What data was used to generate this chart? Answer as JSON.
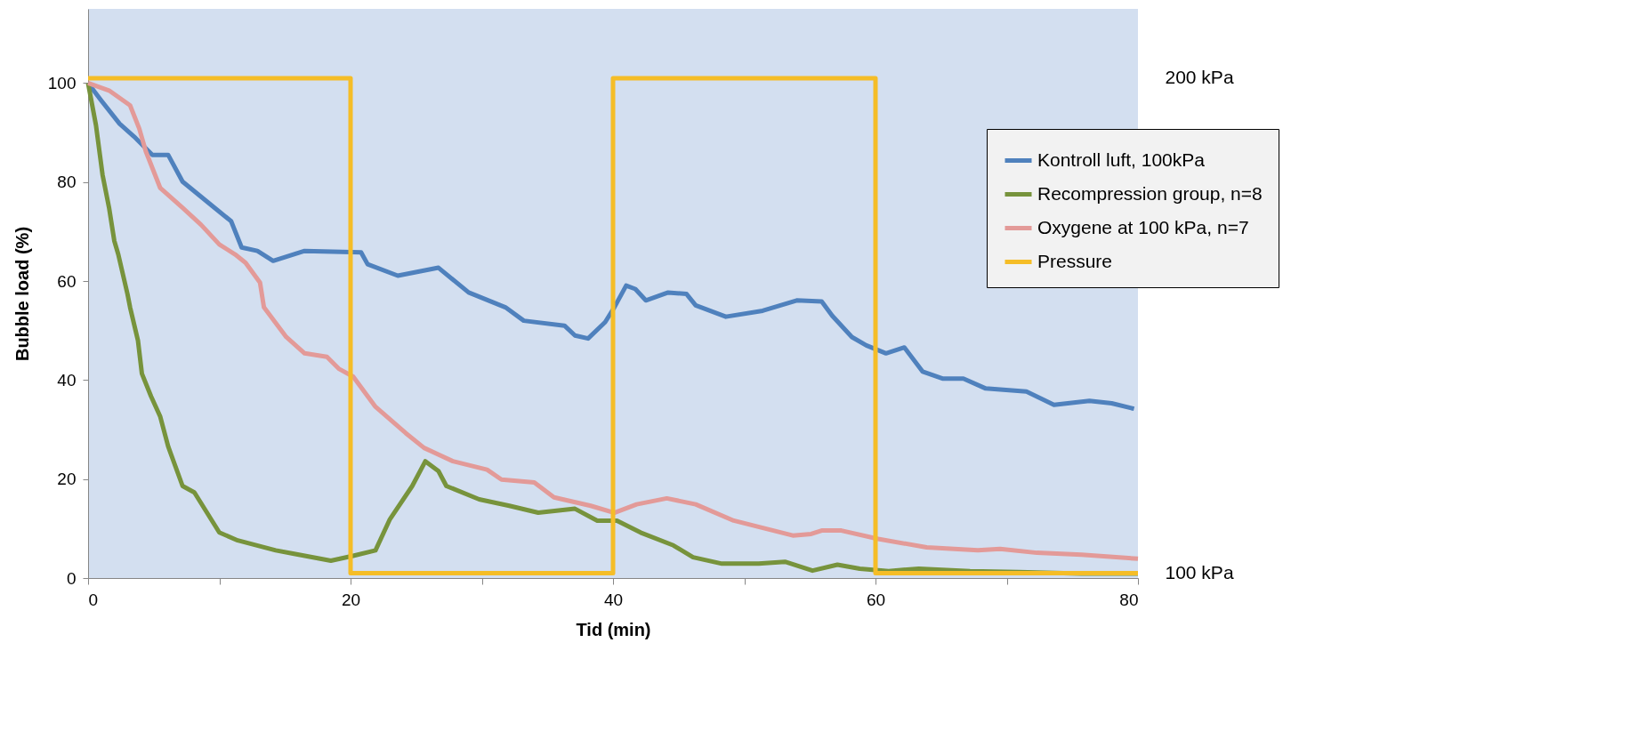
{
  "chart_data": {
    "type": "line",
    "xlabel": "Tid (min)",
    "ylabel": "Bubble load (%)",
    "xlim": [
      0,
      80
    ],
    "xticks": [
      0,
      {
        "value": 10,
        "label": null
      },
      20,
      {
        "value": 30,
        "label": null
      },
      40,
      {
        "value": 50,
        "label": null
      },
      60,
      {
        "value": 70,
        "label": null
      },
      80
    ],
    "ylim": [
      0,
      115
    ],
    "yticks": [
      0,
      20,
      40,
      60,
      80,
      100
    ],
    "y2lim": [
      99,
      214
    ],
    "y2ticks": [
      {
        "value": 200,
        "label": "200 kPa"
      },
      {
        "value": 100,
        "label": "100 kPa"
      }
    ],
    "grid": false,
    "legend": "right",
    "series": [
      {
        "name": "Kontroll luft, 100kPa",
        "color": "#4f81bd",
        "x": [
          0,
          1.0,
          2.4,
          3.5,
          4.9,
          6.1,
          7.2,
          9.5,
          10.9,
          11.7,
          12.9,
          14.1,
          16.5,
          20.8,
          21.3,
          23.6,
          26.7,
          29.0,
          31.8,
          33.2,
          36.3,
          37.1,
          38.1,
          39.4,
          40.1,
          41.0,
          41.7,
          42.5,
          44.2,
          45.6,
          46.3,
          48.6,
          51.4,
          54.0,
          55.9,
          56.7,
          58.2,
          59.3,
          60.8,
          62.2,
          63.6,
          65.1,
          66.7,
          68.4,
          71.5,
          73.6,
          76.3,
          78.0,
          79.7
        ],
        "values": [
          100,
          96.5,
          91.8,
          89.2,
          85.5,
          85.5,
          80.1,
          75.1,
          72.1,
          66.8,
          66.1,
          64.1,
          66.1,
          65.8,
          63.4,
          61.1,
          62.7,
          57.7,
          54.7,
          52.0,
          51.0,
          49.0,
          48.4,
          51.7,
          54.7,
          59.1,
          58.4,
          56.1,
          57.7,
          57.4,
          55.1,
          52.8,
          54.0,
          56.1,
          55.9,
          53.0,
          48.7,
          47.0,
          45.4,
          46.6,
          41.7,
          40.3,
          40.3,
          38.3,
          37.7,
          35.0,
          35.8,
          35.3,
          34.2
        ]
      },
      {
        "name": "Recompression group, n=8",
        "color": "#77933c",
        "x": [
          0,
          0.6,
          1.1,
          1.6,
          2.0,
          2.3,
          3.0,
          3.2,
          3.8,
          4.1,
          4.8,
          5.5,
          6.1,
          7.2,
          8.1,
          10.0,
          11.4,
          14.3,
          15.7,
          18.5,
          20.2,
          21.9,
          23.0,
          24.7,
          25.7,
          26.7,
          27.3,
          29.8,
          32.1,
          34.3,
          37.1,
          38.8,
          40.3,
          42.1,
          44.6,
          46.1,
          48.3,
          51.1,
          53.1,
          55.2,
          57.1,
          58.8,
          61.0,
          63.3,
          67.2,
          70.9,
          75.7,
          80
        ],
        "values": [
          100,
          91.5,
          81.5,
          74.8,
          68.1,
          65.4,
          57.4,
          54.7,
          48.0,
          41.3,
          36.7,
          32.6,
          26.6,
          18.6,
          17.3,
          9.2,
          7.6,
          5.6,
          4.9,
          3.5,
          4.5,
          5.6,
          11.9,
          18.6,
          23.6,
          21.6,
          18.6,
          15.9,
          14.6,
          13.2,
          14.0,
          11.6,
          11.6,
          9.2,
          6.6,
          4.2,
          2.9,
          2.9,
          3.3,
          1.5,
          2.7,
          1.9,
          1.4,
          1.9,
          1.4,
          1.2,
          0.9,
          0.9
        ]
      },
      {
        "name": "Oxygene at 100 kPa, n=7",
        "color": "#e39a98",
        "x": [
          0,
          1.6,
          3.2,
          3.9,
          4.4,
          5.5,
          7.2,
          8.6,
          10.0,
          11.2,
          12.0,
          13.1,
          13.4,
          15.1,
          16.5,
          18.2,
          19.1,
          20.2,
          21.9,
          24.2,
          25.6,
          27.8,
          30.4,
          31.5,
          34.0,
          35.5,
          38.3,
          40.1,
          41.8,
          44.1,
          46.3,
          49.2,
          53.7,
          55.1,
          55.9,
          57.4,
          60.2,
          63.9,
          67.8,
          69.5,
          72.3,
          75.7,
          80
        ],
        "values": [
          100,
          98.5,
          95.5,
          90.8,
          86.2,
          78.8,
          74.8,
          71.4,
          67.4,
          65.4,
          63.7,
          59.7,
          54.7,
          48.7,
          45.4,
          44.7,
          42.3,
          40.7,
          34.6,
          29.3,
          26.3,
          23.6,
          21.9,
          19.9,
          19.3,
          16.3,
          14.6,
          13.2,
          14.9,
          16.1,
          14.9,
          11.6,
          8.6,
          8.9,
          9.6,
          9.6,
          7.9,
          6.2,
          5.6,
          5.9,
          5.1,
          4.7,
          3.9
        ]
      },
      {
        "name": "Pressure",
        "color": "#f5bd27",
        "type": "step",
        "axis": "y2",
        "x": [
          0,
          20,
          40,
          60,
          80
        ],
        "values": [
          200,
          100,
          200,
          100,
          100
        ]
      }
    ]
  }
}
